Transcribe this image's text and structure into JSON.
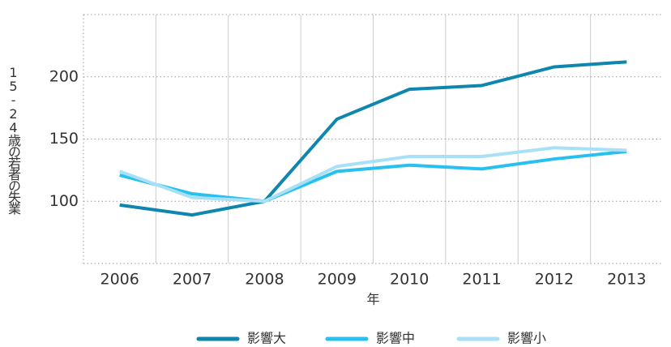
{
  "chart_data": {
    "type": "line",
    "x_label": "年",
    "y_label": "15-24歳の若者の失業",
    "categories": [
      "2006",
      "2007",
      "2008",
      "2009",
      "2010",
      "2011",
      "2012",
      "2013"
    ],
    "series": [
      {
        "name": "影響大",
        "color": "#0e86ae",
        "values": [
          97,
          89,
          100,
          166,
          190,
          193,
          208,
          212
        ]
      },
      {
        "name": "影響中",
        "color": "#27c0ef",
        "values": [
          121,
          106,
          100,
          124,
          129,
          126,
          134,
          140
        ]
      },
      {
        "name": "影響小",
        "color": "#a8e0f7",
        "values": [
          124,
          103,
          100,
          128,
          136,
          136,
          143,
          141
        ]
      }
    ],
    "ylim": [
      50,
      250
    ],
    "yticks": [
      100,
      150,
      200
    ],
    "grid": true,
    "legend": "bottom"
  }
}
